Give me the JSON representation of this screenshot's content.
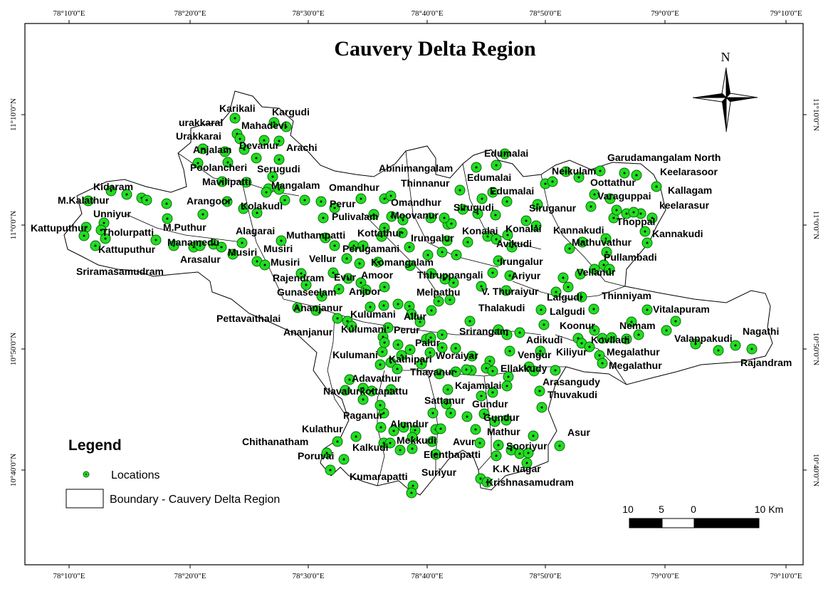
{
  "title": "Cauvery Delta Region",
  "north_label": "N",
  "axes": {
    "top": [
      "78°10'0\"E",
      "78°20'0\"E",
      "78°30'0\"E",
      "78°40'0\"E",
      "78°50'0\"E",
      "79°0'0\"E",
      "79°10'0\"E"
    ],
    "bottom": [
      "78°10'0\"E",
      "78°20'0\"E",
      "78°30'0\"E",
      "78°40'0\"E",
      "78°50'0\"E",
      "79°0'0\"E",
      "79°10'0\"E"
    ],
    "left": [
      "11°10'0\"N",
      "11°0'0\"N",
      "10°50'0\"N",
      "10°40'0\"N"
    ],
    "right": [
      "11°10'0\"N",
      "11°0'0\"N",
      "10°50'0\"N",
      "10°40'0\"N"
    ]
  },
  "legend": {
    "title": "Legend",
    "locations_label": "Locations",
    "boundary_label": "Boundary - Cauvery Delta Region"
  },
  "scale": {
    "labels": [
      "10",
      "5",
      "0",
      "10 Km"
    ]
  },
  "colors": {
    "point_fill": "#22dd22",
    "point_stroke": "#0a6a0a",
    "boundary": "#000000",
    "background": "#ffffff"
  },
  "place_labels": [
    "Karikali",
    "Kargudi",
    "urakkaral",
    "Mahadevi",
    "Urakkarai",
    "Devanur",
    "Arachi",
    "Anjalam",
    "Poolancheri",
    "Serugudi",
    "Mavilipatti",
    "Mangalam",
    "Omandhur",
    "Kidaram",
    "M.Kalathur",
    "Arangoor",
    "Perur",
    "Kolakudi",
    "Unniyur",
    "Omandhur",
    "Pulivalam",
    "Moovanur",
    "M.Puthur",
    "Kattuputhur",
    "Tholurpatti",
    "Alagarai",
    "Muthampatti",
    "Kottathur",
    "Irungalur",
    "Manamedu",
    "Musiri",
    "Musiri",
    "Perugamani",
    "Kattuputhur",
    "Arasalur",
    "Sriramasamudram",
    "Vellur",
    "Musiri",
    "Komangalam",
    "Rajendram",
    "Evur",
    "Amoor",
    "Thiruppangali",
    "Gunaseelam",
    "Anjoor",
    "Melpathu",
    "Ananjanur",
    "Pettavaithalai",
    "Kulumani",
    "Allur",
    "Ananjanur",
    "Kulumani",
    "Perur",
    "Kulumani",
    "Palur",
    "Kathipari",
    "Woraiyar",
    "Thayanur",
    "Adavathur",
    "Navalurkottapattu",
    "Kajamalai",
    "Sattanur",
    "Paganur",
    "Alundur",
    "Kulathur",
    "Chithanatham",
    "Kalkudi",
    "Mekkudi",
    "Avur",
    "Poruvai",
    "Elenthapatti",
    "Kumarapatti",
    "Suriyur",
    "Edumalai",
    "Abinimangalam",
    "Thinnanur",
    "Edumalai",
    "Edumalai",
    "Sirugudi",
    "Konalai",
    "Konalai",
    "Avikudi",
    "Irungalur",
    "Ariyur",
    "V. Thuraiyur",
    "Thalakudi",
    "Srirangam",
    "Adikudi",
    "Vengur",
    "Ellakkudy",
    "Arasangudy",
    "Thuvakudi",
    "Gundur",
    "Gundur",
    "Mathur",
    "Sooriyur",
    "K.K Nagar",
    "Krishnasamudram",
    "Asur",
    "Neikulam",
    "Garudamangalam North",
    "Oottathur",
    "Keelarasoor",
    "Varaguppai",
    "Kallagam",
    "keelarasur",
    "Siruganur",
    "Thoppal",
    "Kannakudi",
    "Kannakudi",
    "Mathuvathur",
    "Pullambadi",
    "Vellanur",
    "Lalgudi",
    "Thinniyam",
    "Lalgudi",
    "Vitalapuram",
    "Koonur",
    "Nemam",
    "Koviladi",
    "Valappakudi",
    "Nagathi",
    "Kiliyur",
    "Megalathur",
    "Megalathur",
    "Rajandram"
  ]
}
